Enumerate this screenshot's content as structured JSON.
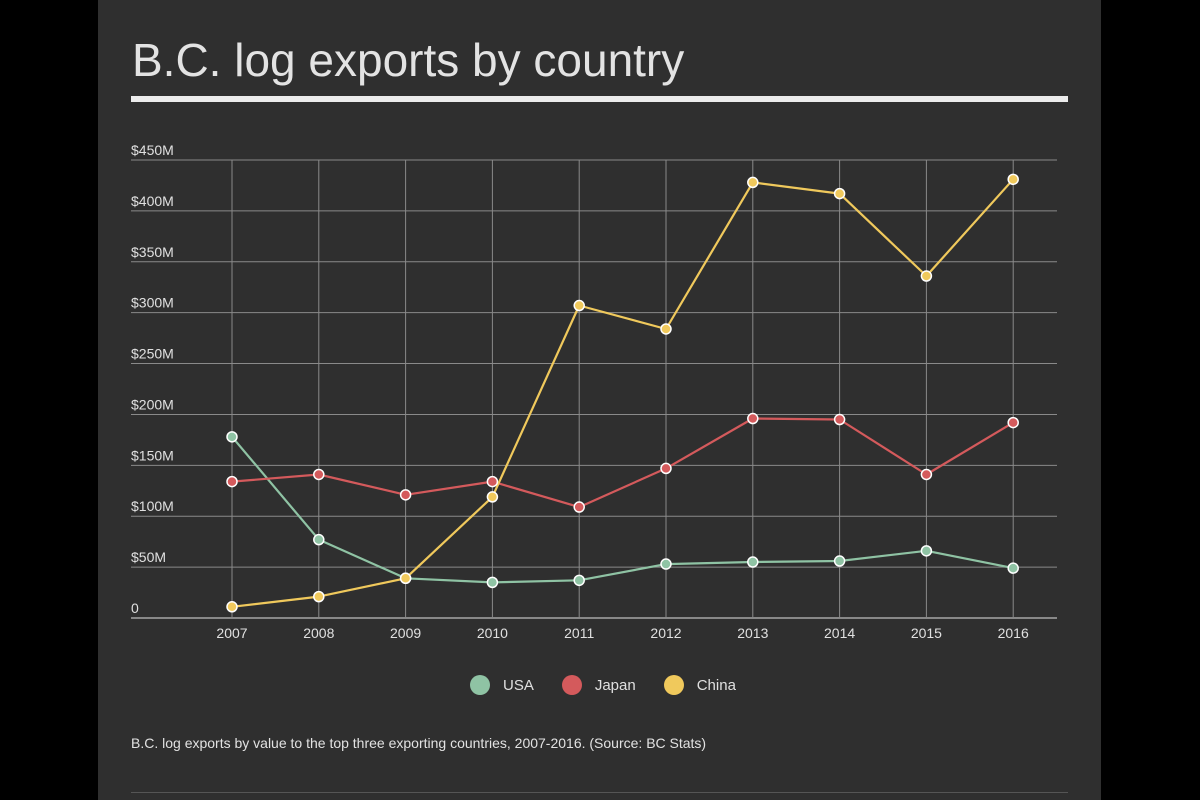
{
  "chart_data": {
    "type": "line",
    "title": "B.C. log exports by country",
    "caption": "B.C. log exports by value to the top three exporting countries, 2007-2016. (Source: BC Stats)",
    "x": [
      "2007",
      "2008",
      "2009",
      "2010",
      "2011",
      "2012",
      "2013",
      "2014",
      "2015",
      "2016"
    ],
    "y_ticks": [
      0,
      50,
      100,
      150,
      200,
      250,
      300,
      350,
      400,
      450
    ],
    "y_tick_labels": [
      "0",
      "$50M",
      "$100M",
      "$150M",
      "$200M",
      "$250M",
      "$300M",
      "$350M",
      "$400M",
      "$450M"
    ],
    "ylim": [
      0,
      450
    ],
    "y_unit": "millions of dollars",
    "grid": true,
    "legend_position": "bottom-center",
    "series": [
      {
        "name": "USA",
        "color": "#8fc3a4",
        "values": [
          178,
          77,
          39,
          35,
          37,
          53,
          55,
          56,
          66,
          49
        ]
      },
      {
        "name": "Japan",
        "color": "#d45a5c",
        "values": [
          134,
          141,
          121,
          134,
          109,
          147,
          196,
          195,
          141,
          192
        ]
      },
      {
        "name": "China",
        "color": "#f0c95c",
        "values": [
          11,
          21,
          39,
          119,
          307,
          284,
          428,
          417,
          336,
          431
        ]
      }
    ]
  }
}
